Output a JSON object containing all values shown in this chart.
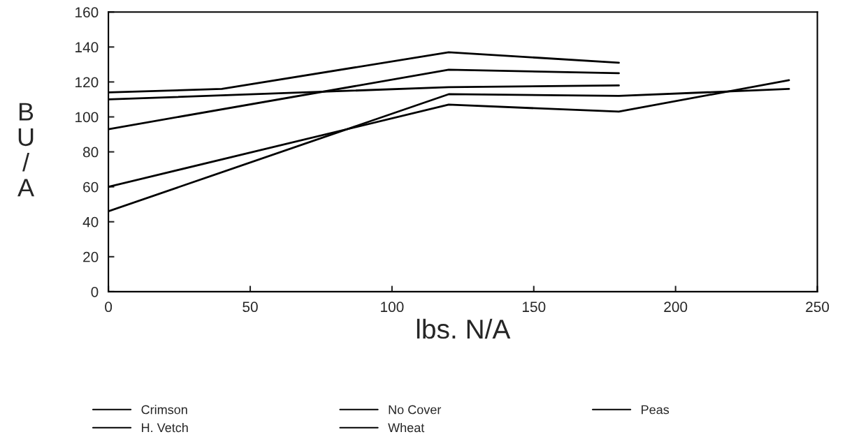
{
  "chart_data": {
    "type": "line",
    "xlabel": "lbs. N/A",
    "ylabel": "BU/A",
    "series": [
      {
        "name": "Crimson",
        "color": "#000000",
        "x": [
          0,
          120,
          180
        ],
        "values": [
          110,
          117,
          118
        ]
      },
      {
        "name": "H. Vetch",
        "color": "#000000",
        "x": [
          0,
          40,
          120,
          180
        ],
        "values": [
          114,
          116,
          137,
          131
        ]
      },
      {
        "name": "No Cover",
        "color": "#000000",
        "x": [
          0,
          120,
          180,
          240
        ],
        "values": [
          60,
          107,
          103,
          121
        ]
      },
      {
        "name": "Wheat",
        "color": "#000000",
        "x": [
          0,
          120,
          180,
          240
        ],
        "values": [
          46,
          113,
          112,
          116
        ]
      },
      {
        "name": "Peas",
        "color": "#000000",
        "x": [
          0,
          120,
          180
        ],
        "values": [
          93,
          127,
          125
        ]
      }
    ],
    "xlim": [
      0,
      250
    ],
    "xticks": [
      0,
      50,
      100,
      150,
      200,
      250
    ],
    "ylim": [
      0,
      160
    ],
    "yticks": [
      0,
      20,
      40,
      60,
      80,
      100,
      120,
      140,
      160
    ],
    "grid": false,
    "legend": "bottom",
    "marker": "none",
    "line_style": "solid"
  }
}
